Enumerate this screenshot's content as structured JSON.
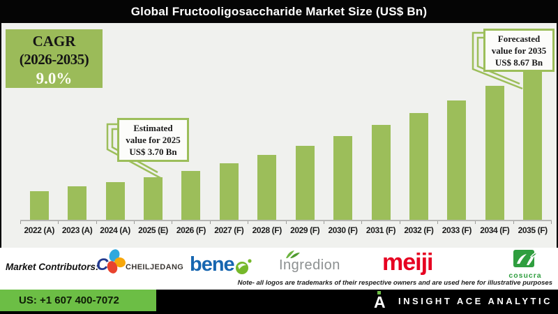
{
  "title": "Global Fructooligosaccharide Market Size (US$ Bn)",
  "cagr_box": {
    "line1": "CAGR",
    "line2": "(2026-2035)",
    "value": "9.0%"
  },
  "callouts": {
    "estimated": {
      "lines": [
        "Estimated",
        "value for 2025",
        "US$ 3.70 Bn"
      ]
    },
    "forecasted": {
      "lines": [
        "Forecasted",
        "value for 2035",
        "US$ 8.67 Bn"
      ]
    }
  },
  "chart_data": {
    "type": "bar",
    "title": "Global Fructooligosaccharide Market Size (US$ Bn)",
    "unit": "US$ Bn",
    "categories": [
      "2022 (A)",
      "2023 (A)",
      "2024 (A)",
      "2025 (E)",
      "2026 (F)",
      "2027 (F)",
      "2028 (F)",
      "2029 (F)",
      "2030 (F)",
      "2031 (F)",
      "2032 (F)",
      "2033 (F)",
      "2034 (F)",
      "2035 (F)"
    ],
    "values": [
      3.05,
      3.28,
      3.47,
      3.7,
      3.99,
      4.35,
      4.74,
      5.17,
      5.63,
      6.14,
      6.69,
      7.29,
      7.95,
      8.67
    ],
    "xlabel": "",
    "ylabel": "",
    "ylim": [
      1.7,
      10.9
    ],
    "grid": false,
    "legend": false,
    "y_axis_visible": false,
    "bar_color": "#9cbe5a",
    "annotations": [
      "CAGR (2026-2035) 9.0%",
      "Estimated value for 2025 US$ 3.70 Bn",
      "Forecasted value for 2035 US$ 8.67 Bn"
    ]
  },
  "contributors": {
    "label": "Market Contributors:",
    "cj": {
      "mark": "CJ",
      "text": "CHEILJEDANG"
    },
    "beneo": {
      "wordmark": "beneo"
    },
    "ingredion": {
      "wordmark": "Ingredion"
    },
    "meiji": {
      "wordmark": "meiji"
    },
    "cosucra": {
      "wordmark": "cosucra"
    },
    "note": "Note- all logos are trademarks of their respective owners and are used here for illustrative purposes"
  },
  "footer": {
    "phone": "US: +1 607 400-7072",
    "brand": "INSIGHT ACE ANALYTIC"
  },
  "colors": {
    "bar_green": "#9cbe5a",
    "cagr_box_green": "#9bbb59",
    "footer_green": "#6cbe45",
    "chart_background": "#f0f1ee",
    "title_bar": "#050505",
    "meiji_red": "#e60021",
    "beneo_blue": "#1766b0",
    "ingredion_gray": "#8c9091",
    "cosucra_green": "#2f9e3f",
    "cj_navy": "#233a8f"
  }
}
